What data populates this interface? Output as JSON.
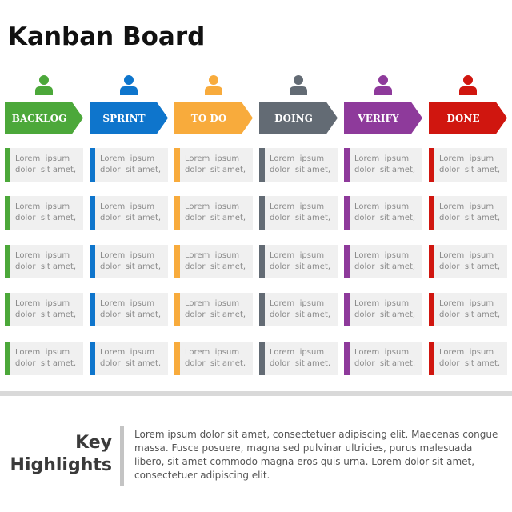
{
  "title": "Kanban Board",
  "columns": [
    {
      "label": "BACKLOG",
      "color": "#4ca83a",
      "icon": "person-icon"
    },
    {
      "label": "SPRINT",
      "color": "#0e75cc",
      "icon": "person-icon"
    },
    {
      "label": "TO DO",
      "color": "#f8ab3c",
      "icon": "person-icon"
    },
    {
      "label": "DOING",
      "color": "#636b74",
      "icon": "person-icon"
    },
    {
      "label": "VERIFY",
      "color": "#8e3a9b",
      "icon": "person-icon"
    },
    {
      "label": "DONE",
      "color": "#d0160f",
      "icon": "person-icon"
    }
  ],
  "card_text": {
    "line1": "Lorem  ipsum",
    "line2": "dolor  sit amet,"
  },
  "cards_per_column": 5,
  "highlights": {
    "heading_line1": "Key",
    "heading_line2": "Highlights",
    "body": "Lorem ipsum dolor sit amet, consectetuer adipiscing elit. Maecenas\ncongue massa. Fusce posuere, magna sed pulvinar ultricies, purus\nmalesuada libero, sit amet commodo magna eros quis urna.  Lorem\ndolor sit amet, consectetuer adipiscing elit."
  }
}
